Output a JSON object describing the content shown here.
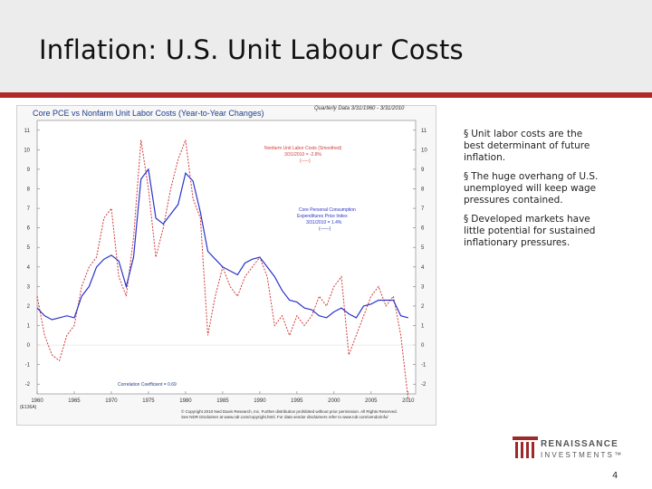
{
  "slide": {
    "title": "Inflation: U.S. Unit Labour Costs",
    "page_number": "4"
  },
  "bullets": [
    "Unit labor costs are the best determinant of future inflation.",
    "The huge overhang of U.S. unemployed will keep wage pressures contained.",
    "Developed markets have little potential for sustained inflationary pressures."
  ],
  "bullet_marker": "§",
  "logo": {
    "line1": "RENAISSANCE",
    "line2": "INVESTMENTS™"
  },
  "chart_copyright": {
    "line1": "© Copyright 2010 Ned Davis Research, Inc. Further distribution prohibited without prior permission. All Rights Reserved.",
    "line2": "See NDR Disclaimer at www.ndr.com/copyright.html. For data vendor disclaimers refer to www.ndr.com/vendorinfo/"
  },
  "chart_data": {
    "type": "line",
    "title": "Core PCE vs Nonfarm Unit Labor Costs (Year-to-Year Changes)",
    "subtitle": "Quarterly Data 3/31/1960 - 3/31/2010",
    "chart_code": "(E136A)",
    "ylim": [
      -2.5,
      11.5
    ],
    "yticks": [
      -2,
      -1,
      0,
      1,
      2,
      3,
      4,
      5,
      6,
      7,
      8,
      9,
      10,
      11
    ],
    "xlim": [
      1960,
      2011
    ],
    "xticks": [
      1960,
      1965,
      1970,
      1975,
      1980,
      1985,
      1990,
      1995,
      2000,
      2005,
      2010
    ],
    "annotations": {
      "ulc_label": [
        "Nonfarm Unit Labor Costs (Smoothed)",
        "3/31/2010 = -2.8%",
        "(-----)"
      ],
      "pce_label": [
        "Core Personal Consumption",
        "Expenditures Price Index",
        "3/31/2010 = 1.4%",
        "(——)"
      ],
      "correlation": "Correlation Coefficient = 0.69"
    },
    "series": [
      {
        "name": "Nonfarm Unit Labor Costs (Smoothed)",
        "color": "#d23a3a",
        "style": "dashed",
        "x": [
          1960,
          1961,
          1962,
          1963,
          1964,
          1965,
          1966,
          1967,
          1968,
          1969,
          1970,
          1971,
          1972,
          1973,
          1974,
          1975,
          1976,
          1977,
          1978,
          1979,
          1980,
          1981,
          1982,
          1983,
          1984,
          1985,
          1986,
          1987,
          1988,
          1989,
          1990,
          1991,
          1992,
          1993,
          1994,
          1995,
          1996,
          1997,
          1998,
          1999,
          2000,
          2001,
          2002,
          2003,
          2004,
          2005,
          2006,
          2007,
          2008,
          2009,
          2010
        ],
        "values": [
          2.5,
          0.5,
          -0.5,
          -0.8,
          0.5,
          1.0,
          3.0,
          4.0,
          4.5,
          6.5,
          7.0,
          3.5,
          2.5,
          5.5,
          10.5,
          8.0,
          4.5,
          6.0,
          8.0,
          9.5,
          10.5,
          7.5,
          6.5,
          0.5,
          2.5,
          4.0,
          3.0,
          2.5,
          3.5,
          4.0,
          4.5,
          3.5,
          1.0,
          1.5,
          0.5,
          1.5,
          1.0,
          1.5,
          2.5,
          2.0,
          3.0,
          3.5,
          -0.5,
          0.5,
          1.5,
          2.5,
          3.0,
          2.0,
          2.5,
          0.5,
          -2.8
        ]
      },
      {
        "name": "Core Personal Consumption Expenditures Price Index",
        "color": "#2b34c8",
        "style": "solid",
        "x": [
          1960,
          1961,
          1962,
          1963,
          1964,
          1965,
          1966,
          1967,
          1968,
          1969,
          1970,
          1971,
          1972,
          1973,
          1974,
          1975,
          1976,
          1977,
          1978,
          1979,
          1980,
          1981,
          1982,
          1983,
          1984,
          1985,
          1986,
          1987,
          1988,
          1989,
          1990,
          1991,
          1992,
          1993,
          1994,
          1995,
          1996,
          1997,
          1998,
          1999,
          2000,
          2001,
          2002,
          2003,
          2004,
          2005,
          2006,
          2007,
          2008,
          2009,
          2010
        ],
        "values": [
          1.9,
          1.5,
          1.3,
          1.4,
          1.5,
          1.4,
          2.5,
          3.0,
          4.0,
          4.4,
          4.6,
          4.3,
          3.0,
          4.5,
          8.5,
          9.0,
          6.5,
          6.2,
          6.7,
          7.2,
          8.8,
          8.4,
          6.8,
          4.8,
          4.4,
          4.0,
          3.8,
          3.6,
          4.2,
          4.4,
          4.5,
          4.0,
          3.5,
          2.8,
          2.3,
          2.2,
          1.9,
          1.8,
          1.5,
          1.4,
          1.7,
          1.9,
          1.6,
          1.4,
          2.0,
          2.1,
          2.3,
          2.3,
          2.3,
          1.5,
          1.4
        ]
      }
    ]
  }
}
